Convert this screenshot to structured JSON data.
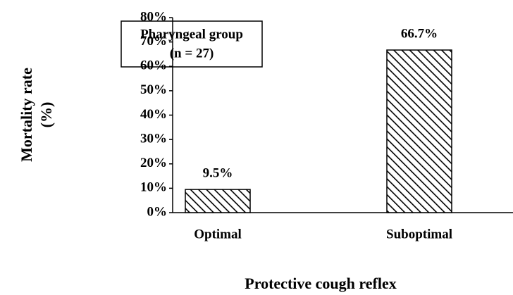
{
  "chart_data": {
    "type": "bar",
    "categories": [
      "Optimal",
      "Suboptimal"
    ],
    "values": [
      9.5,
      66.7
    ],
    "value_labels": [
      "9.5%",
      "66.7%"
    ],
    "color": "#000000",
    "ylim": [
      0,
      80
    ],
    "yticks": [
      {
        "value": 0,
        "label": "0%"
      },
      {
        "value": 10,
        "label": "10%"
      },
      {
        "value": 20,
        "label": "20%"
      },
      {
        "value": 30,
        "label": "30%"
      },
      {
        "value": 40,
        "label": "40%"
      },
      {
        "value": 50,
        "label": "50%"
      },
      {
        "value": 60,
        "label": "60%"
      },
      {
        "value": 70,
        "label": "70%"
      },
      {
        "value": 80,
        "label": "80%"
      }
    ],
    "ylabel": [
      "Mortality rate",
      "(%)"
    ],
    "xlabel": "Protective cough reflex",
    "annotation": [
      "Pharyngeal group",
      "(n = 27)"
    ]
  }
}
